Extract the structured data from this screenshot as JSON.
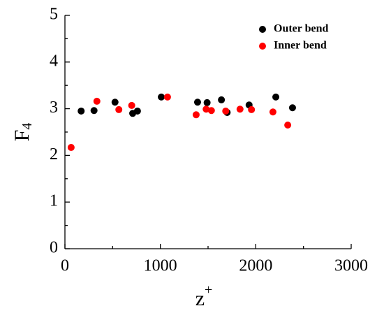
{
  "chart_data": {
    "type": "scatter",
    "xlabel": "z",
    "xlabel_sup": "+",
    "ylabel": "F",
    "ylabel_sub": "4",
    "xlim": [
      0,
      3000
    ],
    "xticks": [
      0,
      1000,
      2000,
      3000
    ],
    "ylim": [
      0,
      5
    ],
    "yticks": [
      0,
      1,
      2,
      3,
      4,
      5
    ],
    "legend": "upper right",
    "series": [
      {
        "name": "Outer bend",
        "color": "#000000",
        "x": [
          170,
          305,
          525,
          710,
          760,
          1010,
          1390,
          1490,
          1640,
          1700,
          1930,
          2210,
          2385
        ],
        "values": [
          2.95,
          2.96,
          3.14,
          2.9,
          2.95,
          3.25,
          3.14,
          3.13,
          3.19,
          2.92,
          3.08,
          3.25,
          3.02
        ]
      },
      {
        "name": "Inner bend",
        "color": "#ff0000",
        "x": [
          65,
          335,
          565,
          700,
          1075,
          1375,
          1480,
          1535,
          1685,
          1835,
          1955,
          2180,
          2335
        ],
        "values": [
          2.17,
          3.16,
          2.98,
          3.07,
          3.25,
          2.87,
          2.99,
          2.96,
          2.95,
          2.99,
          2.98,
          2.93,
          2.65
        ]
      }
    ]
  }
}
